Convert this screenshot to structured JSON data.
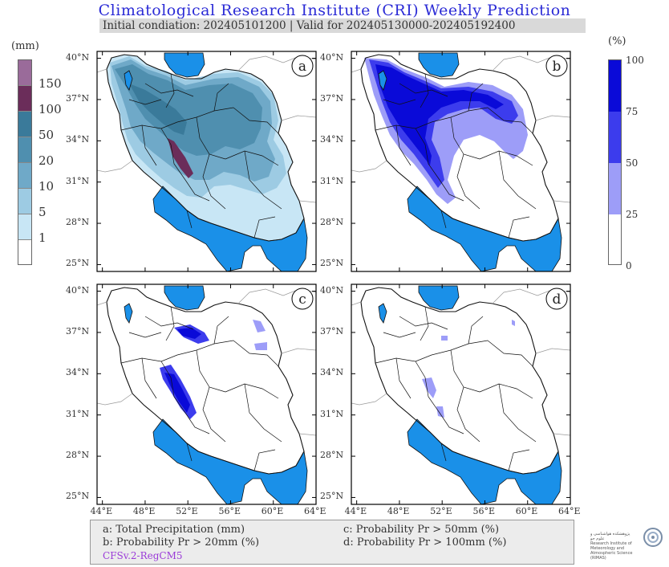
{
  "title": "Climatological Research Institute (CRI) Weekly Prediction",
  "subtitle": "Initial condiation: 202405101200 | Valid for 202405130000-202405192400",
  "left_colorbar": {
    "unit": "(mm)",
    "levels": [
      "150",
      "100",
      "50",
      "20",
      "10",
      "5",
      "1"
    ],
    "colors": [
      "#9a6b9a",
      "#6b2d5a",
      "#3a7a9a",
      "#4f8faf",
      "#6fa9c8",
      "#9dcbe3",
      "#c8e6f5",
      "#ffffff"
    ]
  },
  "right_colorbar": {
    "unit": "(%)",
    "levels": [
      "100",
      "75",
      "50",
      "25",
      "0"
    ],
    "colors": [
      "#0a0ad8",
      "#3c3ced",
      "#9d9df8",
      "#ffffff"
    ]
  },
  "panels": [
    {
      "label": "a"
    },
    {
      "label": "b"
    },
    {
      "label": "c"
    },
    {
      "label": "d"
    }
  ],
  "lat_labels": [
    "40°N",
    "37°N",
    "34°N",
    "31°N",
    "28°N",
    "25°N"
  ],
  "lon_labels": [
    "44°E",
    "48°E",
    "52°E",
    "56°E",
    "60°E",
    "64°E"
  ],
  "legend": {
    "a": "a: Total Precipitation (mm)",
    "b": "b: Probability Pr > 20mm (%)",
    "c": "c: Probability Pr > 50mm (%)",
    "d": "d: Probability Pr > 100mm (%)",
    "model": "CFSv.2-RegCM5"
  },
  "logo": {
    "name_fa": "پژوهشکده هواشناسی و علوم جو",
    "name_en": "Research Institute of Meteorology and Atmospheric Science (RIMAS)"
  },
  "colors": {
    "sea": "#1a90e8",
    "title": "#2b2bd6"
  }
}
